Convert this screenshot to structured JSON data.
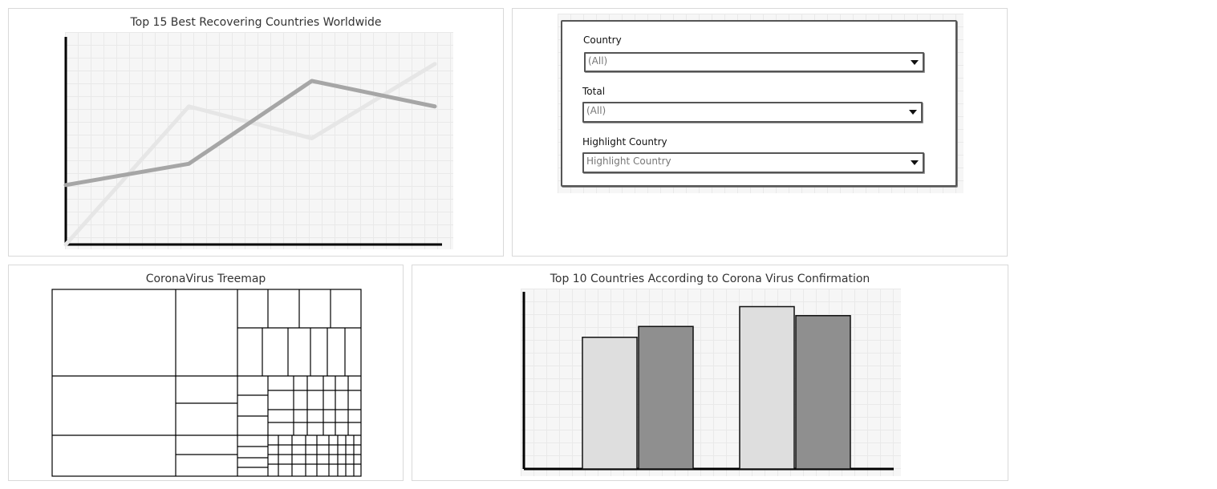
{
  "line_panel": {
    "title": "Top 15 Best Recovering Countries Worldwide"
  },
  "filters": {
    "country_label": "Country",
    "country_value": "(All)",
    "total_label": "Total",
    "total_value": "(All)",
    "highlight_label": "Highlight Country",
    "highlight_placeholder": "Highlight Country"
  },
  "treemap_panel": {
    "title": "CoronaVirus Treemap"
  },
  "bar_panel": {
    "title": "Top 10 Countries According to Corona Virus Confirmation"
  },
  "chart_data": [
    {
      "type": "line",
      "title": "Top 15 Best Recovering Countries Worldwide",
      "x": [
        0,
        1,
        2,
        3
      ],
      "ylim": [
        0,
        10
      ],
      "series": [
        {
          "values": [
            0.0,
            6.5,
            5.0,
            8.5
          ],
          "color": "#e6e6e6"
        },
        {
          "values": [
            2.8,
            3.8,
            7.7,
            6.5
          ],
          "color": "#a6a6a6"
        }
      ],
      "grid": true
    },
    {
      "type": "heatmap",
      "title": "CoronaVirus Treemap",
      "note_values": "wireframe treemap with unlabeled tiles"
    },
    {
      "type": "bar",
      "title": "Top 10 Countries According to Corona Virus Confirmation",
      "categories": [
        "",
        ""
      ],
      "ylim": [
        0,
        10
      ],
      "series": [
        {
          "values": [
            7.3,
            9.0
          ],
          "color": "#dedede"
        },
        {
          "values": [
            7.9,
            8.5
          ],
          "color": "#8f8f8f"
        }
      ],
      "grid": true
    }
  ]
}
